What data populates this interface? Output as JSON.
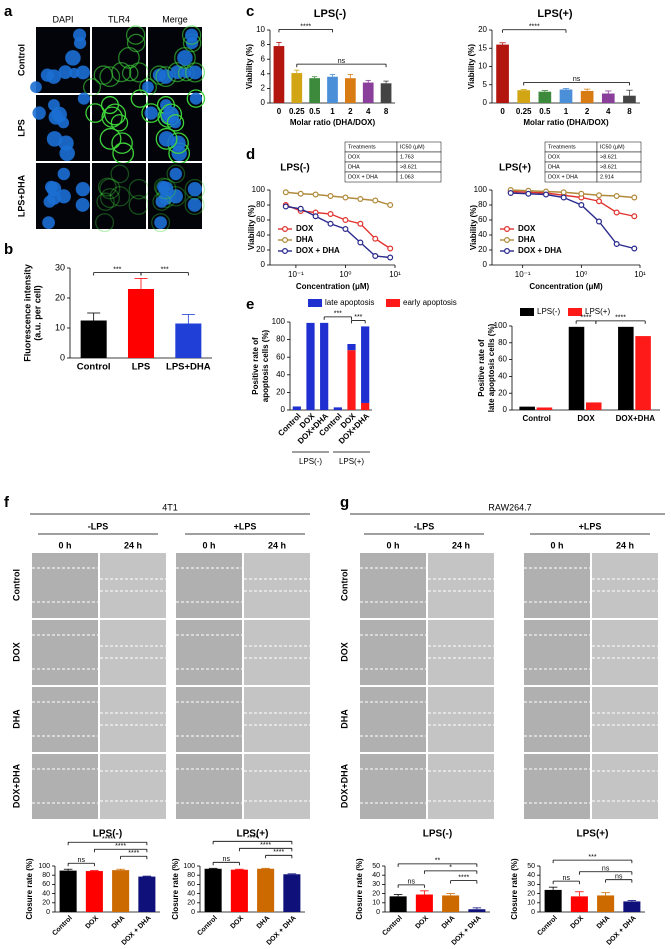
{
  "panels": {
    "letters": [
      "a",
      "b",
      "c",
      "d",
      "e",
      "f",
      "g"
    ],
    "a": {
      "columns": [
        "DAPI",
        "TLR4",
        "Merge"
      ],
      "rows": [
        "Control",
        "LPS",
        "LPS+DHA"
      ]
    },
    "f": {
      "title": "4T1",
      "conditions": [
        "-LPS",
        "+LPS"
      ],
      "times": [
        "0 h",
        "24 h",
        "0 h",
        "24 h"
      ],
      "rows": [
        "Control",
        "DOX",
        "DHA",
        "DOX+DHA"
      ]
    },
    "g": {
      "title": "RAW264.7",
      "conditions": [
        "-LPS",
        "+LPS"
      ],
      "times": [
        "0 h",
        "24 h",
        "0 h",
        "24 h"
      ],
      "rows": [
        "Control",
        "DOX",
        "DHA",
        "DOX+DHA"
      ]
    }
  },
  "chart_data": [
    {
      "type": "bar",
      "ylabel": [
        "Fluorescence intensity",
        "(a.u. per cell)"
      ],
      "categories": [
        "Control",
        "LPS",
        "LPS+DHA"
      ],
      "values": [
        12.5,
        23,
        11.5
      ],
      "errors": [
        2.5,
        3.5,
        3
      ],
      "colors": [
        "#000000",
        "#ff0000",
        "#1f3fd6"
      ],
      "ylim": [
        0,
        30
      ],
      "yticks": [
        0,
        10,
        20,
        30
      ],
      "annotations": [
        "***",
        "***"
      ]
    },
    {
      "type": "bar",
      "title": "LPS(-)",
      "xlabel": "Molar ratio (DHA/DOX)",
      "ylabel": "Viability (%)",
      "categories": [
        "0",
        "0.25",
        "0.5",
        "1",
        "2",
        "4",
        "8"
      ],
      "values": [
        7.8,
        4.1,
        3.4,
        3.6,
        3.4,
        2.8,
        2.7
      ],
      "errors": [
        0.5,
        0.4,
        0.2,
        0.3,
        0.5,
        0.3,
        0.3
      ],
      "colors": [
        "#b2160f",
        "#d1a514",
        "#3e8a3c",
        "#4a8fd8",
        "#d97b13",
        "#8a3f9a",
        "#444444"
      ],
      "ylim": [
        0,
        10
      ],
      "yticks": [
        0,
        2,
        4,
        6,
        8,
        10
      ],
      "annotations": [
        "****",
        "ns"
      ]
    },
    {
      "type": "bar",
      "title": "LPS(+)",
      "xlabel": "Molar ratio (DHA/DOX)",
      "ylabel": "Viability (%)",
      "categories": [
        "0",
        "0.25",
        "0.5",
        "1",
        "2",
        "4",
        "8"
      ],
      "values": [
        16,
        3.5,
        3.1,
        3.7,
        3.3,
        2.6,
        2.0
      ],
      "errors": [
        0.5,
        0.2,
        0.3,
        0.3,
        0.5,
        0.7,
        1.5
      ],
      "colors": [
        "#b2160f",
        "#d1a514",
        "#3e8a3c",
        "#4a8fd8",
        "#d97b13",
        "#8a3f9a",
        "#444444"
      ],
      "ylim": [
        0,
        20
      ],
      "yticks": [
        0,
        5,
        10,
        15,
        20
      ],
      "annotations": [
        "****",
        "ns"
      ]
    },
    {
      "type": "line",
      "title": "LPS(-)",
      "xlabel": "Concentration (μM)",
      "ylabel": "Viability (%)",
      "xlog": true,
      "x": [
        0.0625,
        0.125,
        0.25,
        0.5,
        1,
        2,
        4,
        8
      ],
      "series": [
        {
          "name": "DOX",
          "color": "#e0342f",
          "values": [
            80,
            72,
            70,
            68,
            60,
            55,
            35,
            22
          ]
        },
        {
          "name": "DHA",
          "color": "#b08a3a",
          "values": [
            97,
            95,
            94,
            92,
            90,
            88,
            86,
            80
          ]
        },
        {
          "name": "DOX + DHA",
          "color": "#2a2a8c",
          "values": [
            78,
            75,
            65,
            55,
            48,
            30,
            12,
            10
          ]
        }
      ],
      "xlim": [
        0.03,
        10
      ],
      "xticks": [
        {
          "value": 0.1,
          "label": "10⁻¹"
        },
        {
          "value": 1,
          "label": "10⁰"
        },
        {
          "value": 10,
          "label": "10¹"
        }
      ],
      "ylim": [
        0,
        100
      ],
      "yticks": [
        0,
        20,
        40,
        60,
        80,
        100
      ],
      "table": {
        "header": [
          "Treatments",
          "IC50 (μM)"
        ],
        "rows": [
          [
            "DOX",
            "1.763"
          ],
          [
            "DHA",
            ">8.621"
          ],
          [
            "DOX + DHA",
            "1.063"
          ]
        ]
      }
    },
    {
      "type": "line",
      "title": "LPS(+)",
      "xlabel": "Concentration (μM)",
      "ylabel": "Viability (%)",
      "xlog": true,
      "x": [
        0.0625,
        0.125,
        0.25,
        0.5,
        1,
        2,
        4,
        8
      ],
      "series": [
        {
          "name": "DOX",
          "color": "#e0342f",
          "values": [
            98,
            97,
            96,
            93,
            90,
            85,
            70,
            65
          ]
        },
        {
          "name": "DHA",
          "color": "#b08a3a",
          "values": [
            100,
            99,
            98,
            97,
            95,
            93,
            92,
            90
          ]
        },
        {
          "name": "DOX + DHA",
          "color": "#2a2a8c",
          "values": [
            96,
            95,
            94,
            90,
            80,
            58,
            28,
            22
          ]
        }
      ],
      "xlim": [
        0.03,
        10
      ],
      "xticks": [
        {
          "value": 0.1,
          "label": "10⁻¹"
        },
        {
          "value": 1,
          "label": "10⁰"
        },
        {
          "value": 10,
          "label": "10¹"
        }
      ],
      "ylim": [
        0,
        100
      ],
      "yticks": [
        0,
        20,
        40,
        60,
        80,
        100
      ],
      "table": {
        "header": [
          "Treatments",
          "IC50 (μM)"
        ],
        "rows": [
          [
            "DOX",
            ">8.621"
          ],
          [
            "DHA",
            ">8.621"
          ],
          [
            "DOX + DHA",
            "2.914"
          ]
        ]
      }
    },
    {
      "type": "bar",
      "stacked": true,
      "ylabel": [
        "Positive rate of",
        "apoptosis cells (%)"
      ],
      "categories": [
        "Control",
        "DOX",
        "DOX+DHA",
        "Control",
        "DOX",
        "DOX+DHA"
      ],
      "groups": [
        "LPS(-)",
        "LPS(+)"
      ],
      "series": [
        {
          "name": "early apoptosis",
          "color": "#ff1a1a",
          "values": [
            0,
            0,
            0,
            0,
            68,
            8
          ]
        },
        {
          "name": "late apoptosis",
          "color": "#1f2fd0",
          "values": [
            4,
            99,
            99,
            3,
            7,
            87
          ]
        }
      ],
      "ylim": [
        0,
        100
      ],
      "yticks": [
        0,
        20,
        40,
        60,
        80,
        100
      ],
      "annotations": [
        "***",
        "***"
      ]
    },
    {
      "type": "bar",
      "ylabel": [
        "Positive rate of",
        "late apoptosis cells (%)"
      ],
      "categories": [
        "Control",
        "DOX",
        "DOX+DHA"
      ],
      "series": [
        {
          "name": "LPS(-)",
          "color": "#000000",
          "values": [
            4,
            99,
            99
          ]
        },
        {
          "name": "LPS(+)",
          "color": "#ff1a1a",
          "values": [
            3,
            9,
            88
          ]
        }
      ],
      "ylim": [
        0,
        100
      ],
      "yticks": [
        0,
        20,
        40,
        60,
        80,
        100
      ],
      "annotations": [
        "****",
        "****"
      ]
    },
    {
      "type": "bar",
      "title": "LPS(-)",
      "ylabel": "Closure rate (%)",
      "categories": [
        "Control",
        "DOX",
        "DHA",
        "DOX + DHA"
      ],
      "values": [
        90,
        89,
        91,
        77
      ],
      "errors": [
        3,
        1,
        2,
        1
      ],
      "colors": [
        "#000000",
        "#ff0000",
        "#cc6a00",
        "#10107a"
      ],
      "ylim": [
        0,
        100
      ],
      "yticks": [
        0,
        20,
        40,
        60,
        80,
        100
      ],
      "annotations": [
        "****",
        "ns",
        "****",
        "****"
      ]
    },
    {
      "type": "bar",
      "title": "LPS(+)",
      "ylabel": "Closure rate (%)",
      "categories": [
        "Control",
        "DOX",
        "DHA",
        "DOX + DHA"
      ],
      "values": [
        94,
        92,
        94,
        82
      ],
      "errors": [
        1,
        1,
        1,
        1
      ],
      "colors": [
        "#000000",
        "#ff0000",
        "#cc6a00",
        "#10107a"
      ],
      "ylim": [
        0,
        100
      ],
      "yticks": [
        0,
        20,
        40,
        60,
        80,
        100
      ],
      "annotations": [
        "****",
        "ns",
        "****",
        "****"
      ]
    },
    {
      "type": "bar",
      "title": "LPS(-)",
      "ylabel": "Closure rate (%)",
      "categories": [
        "Control",
        "DOX",
        "DHA",
        "DOX + DHA"
      ],
      "values": [
        17,
        19,
        18,
        3
      ],
      "errors": [
        2,
        4,
        2,
        1.5
      ],
      "colors": [
        "#000000",
        "#ff0000",
        "#cc6a00",
        "#10107a"
      ],
      "ylim": [
        0,
        50
      ],
      "yticks": [
        0,
        10,
        20,
        30,
        40,
        50
      ],
      "annotations": [
        "**",
        "ns",
        "*",
        "****"
      ]
    },
    {
      "type": "bar",
      "title": "LPS(+)",
      "ylabel": "Closure rate (%)",
      "categories": [
        "Control",
        "DOX",
        "DHA",
        "DOX + DHA"
      ],
      "values": [
        24,
        17,
        18,
        11.5
      ],
      "errors": [
        3,
        5,
        3,
        1
      ],
      "colors": [
        "#000000",
        "#ff0000",
        "#cc6a00",
        "#10107a"
      ],
      "ylim": [
        0,
        50
      ],
      "yticks": [
        0,
        10,
        20,
        30,
        40,
        50
      ],
      "annotations": [
        "***",
        "ns",
        "ns",
        "ns"
      ]
    }
  ]
}
